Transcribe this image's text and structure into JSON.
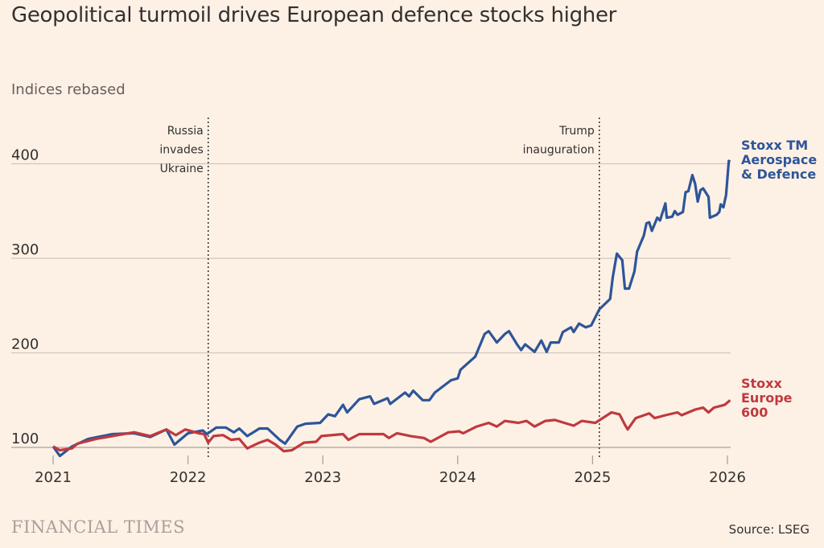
{
  "chart_data": {
    "type": "line",
    "title": "Geopolitical turmoil drives European defence stocks higher",
    "subtitle": "Indices rebased",
    "xlabel": "",
    "ylabel": "Indices rebased",
    "xlim": [
      2021,
      2026.05
    ],
    "ylim": [
      90,
      410
    ],
    "x_ticks": [
      2021,
      2022,
      2023,
      2024,
      2025,
      2026
    ],
    "x_tick_labels": [
      "2021",
      "2022",
      "2023",
      "2024",
      "2025",
      "2026"
    ],
    "y_ticks": [
      100,
      200,
      300,
      400
    ],
    "y_tick_labels": [
      "100",
      "200",
      "300",
      "400"
    ],
    "grid": "horizontal",
    "annotations": [
      {
        "x": 2022.15,
        "lines": [
          "Russia",
          "invades",
          "Ukraine"
        ]
      },
      {
        "x": 2025.05,
        "lines": [
          "Trump",
          "inauguration"
        ]
      }
    ],
    "series": [
      {
        "name": "Stoxx TM Aerospace & Defence",
        "label_lines": [
          "Stoxx TM",
          "Aerospace",
          "& Defence"
        ],
        "color": "#2e5598",
        "points": [
          [
            2021.0,
            101
          ],
          [
            2021.05,
            91
          ],
          [
            2021.14,
            101
          ],
          [
            2021.26,
            109
          ],
          [
            2021.44,
            114
          ],
          [
            2021.6,
            115
          ],
          [
            2021.72,
            111
          ],
          [
            2021.84,
            119
          ],
          [
            2021.9,
            103
          ],
          [
            2022.0,
            115
          ],
          [
            2022.11,
            118
          ],
          [
            2022.14,
            114
          ],
          [
            2022.21,
            121
          ],
          [
            2022.28,
            121
          ],
          [
            2022.34,
            116
          ],
          [
            2022.38,
            120
          ],
          [
            2022.44,
            112
          ],
          [
            2022.53,
            120
          ],
          [
            2022.59,
            120
          ],
          [
            2022.68,
            108
          ],
          [
            2022.72,
            104
          ],
          [
            2022.81,
            122
          ],
          [
            2022.87,
            125
          ],
          [
            2022.98,
            126
          ],
          [
            2023.04,
            135
          ],
          [
            2023.09,
            133
          ],
          [
            2023.15,
            145
          ],
          [
            2023.18,
            137
          ],
          [
            2023.27,
            151
          ],
          [
            2023.35,
            154
          ],
          [
            2023.38,
            146
          ],
          [
            2023.48,
            152
          ],
          [
            2023.5,
            146
          ],
          [
            2023.61,
            158
          ],
          [
            2023.64,
            154
          ],
          [
            2023.67,
            160
          ],
          [
            2023.74,
            150
          ],
          [
            2023.79,
            150
          ],
          [
            2023.83,
            158
          ],
          [
            2023.95,
            171
          ],
          [
            2024.0,
            173
          ],
          [
            2024.02,
            182
          ],
          [
            2024.13,
            196
          ],
          [
            2024.2,
            220
          ],
          [
            2024.23,
            223
          ],
          [
            2024.29,
            211
          ],
          [
            2024.35,
            220
          ],
          [
            2024.38,
            223
          ],
          [
            2024.44,
            209
          ],
          [
            2024.47,
            203
          ],
          [
            2024.5,
            209
          ],
          [
            2024.57,
            201
          ],
          [
            2024.62,
            213
          ],
          [
            2024.66,
            201
          ],
          [
            2024.69,
            211
          ],
          [
            2024.75,
            211
          ],
          [
            2024.78,
            222
          ],
          [
            2024.84,
            227
          ],
          [
            2024.86,
            222
          ],
          [
            2024.9,
            231
          ],
          [
            2024.95,
            227
          ],
          [
            2024.99,
            229
          ],
          [
            2025.05,
            246
          ],
          [
            2025.13,
            257
          ],
          [
            2025.15,
            280
          ],
          [
            2025.18,
            305
          ],
          [
            2025.22,
            298
          ],
          [
            2025.24,
            268
          ],
          [
            2025.27,
            268
          ],
          [
            2025.31,
            286
          ],
          [
            2025.33,
            307
          ],
          [
            2025.38,
            324
          ],
          [
            2025.4,
            337
          ],
          [
            2025.42,
            338
          ],
          [
            2025.44,
            329
          ],
          [
            2025.48,
            343
          ],
          [
            2025.5,
            340
          ],
          [
            2025.54,
            358
          ],
          [
            2025.55,
            343
          ],
          [
            2025.59,
            344
          ],
          [
            2025.61,
            350
          ],
          [
            2025.63,
            346
          ],
          [
            2025.67,
            349
          ],
          [
            2025.69,
            370
          ],
          [
            2025.71,
            371
          ],
          [
            2025.74,
            388
          ],
          [
            2025.76,
            379
          ],
          [
            2025.78,
            360
          ],
          [
            2025.8,
            372
          ],
          [
            2025.82,
            374
          ],
          [
            2025.86,
            365
          ],
          [
            2025.87,
            343
          ],
          [
            2025.92,
            346
          ],
          [
            2025.94,
            349
          ],
          [
            2025.95,
            357
          ],
          [
            2025.97,
            354
          ],
          [
            2025.99,
            367
          ],
          [
            2026.01,
            403
          ],
          [
            2026.02,
            402
          ]
        ]
      },
      {
        "name": "Stoxx Europe 600",
        "label_lines": [
          "Stoxx",
          "Europe",
          "600"
        ],
        "color": "#c0393f",
        "points": [
          [
            2021.0,
            101
          ],
          [
            2021.05,
            97
          ],
          [
            2021.14,
            99
          ],
          [
            2021.18,
            104
          ],
          [
            2021.32,
            109
          ],
          [
            2021.52,
            114
          ],
          [
            2021.6,
            116
          ],
          [
            2021.72,
            112
          ],
          [
            2021.84,
            119
          ],
          [
            2021.91,
            113
          ],
          [
            2021.98,
            119
          ],
          [
            2022.08,
            115
          ],
          [
            2022.12,
            114
          ],
          [
            2022.15,
            105
          ],
          [
            2022.19,
            112
          ],
          [
            2022.26,
            113
          ],
          [
            2022.32,
            108
          ],
          [
            2022.38,
            109
          ],
          [
            2022.44,
            99
          ],
          [
            2022.53,
            105
          ],
          [
            2022.59,
            108
          ],
          [
            2022.65,
            103
          ],
          [
            2022.71,
            96
          ],
          [
            2022.77,
            97
          ],
          [
            2022.86,
            105
          ],
          [
            2022.95,
            106
          ],
          [
            2022.99,
            112
          ],
          [
            2023.15,
            114
          ],
          [
            2023.19,
            108
          ],
          [
            2023.27,
            114
          ],
          [
            2023.45,
            114
          ],
          [
            2023.49,
            110
          ],
          [
            2023.55,
            115
          ],
          [
            2023.65,
            112
          ],
          [
            2023.75,
            110
          ],
          [
            2023.8,
            106
          ],
          [
            2023.93,
            116
          ],
          [
            2024.01,
            117
          ],
          [
            2024.04,
            115
          ],
          [
            2024.14,
            122
          ],
          [
            2024.23,
            126
          ],
          [
            2024.29,
            122
          ],
          [
            2024.35,
            128
          ],
          [
            2024.45,
            126
          ],
          [
            2024.51,
            128
          ],
          [
            2024.57,
            122
          ],
          [
            2024.65,
            128
          ],
          [
            2024.72,
            129
          ],
          [
            2024.86,
            123
          ],
          [
            2024.92,
            128
          ],
          [
            2025.02,
            126
          ],
          [
            2025.14,
            137
          ],
          [
            2025.2,
            135
          ],
          [
            2025.24,
            124
          ],
          [
            2025.26,
            119
          ],
          [
            2025.32,
            131
          ],
          [
            2025.42,
            136
          ],
          [
            2025.46,
            131
          ],
          [
            2025.54,
            134
          ],
          [
            2025.63,
            137
          ],
          [
            2025.66,
            134
          ],
          [
            2025.76,
            140
          ],
          [
            2025.82,
            142
          ],
          [
            2025.86,
            137
          ],
          [
            2025.9,
            142
          ],
          [
            2025.98,
            145
          ],
          [
            2026.02,
            150
          ]
        ]
      }
    ]
  },
  "footer": {
    "logo": "FINANCIAL TIMES",
    "source": "Source: LSEG"
  }
}
